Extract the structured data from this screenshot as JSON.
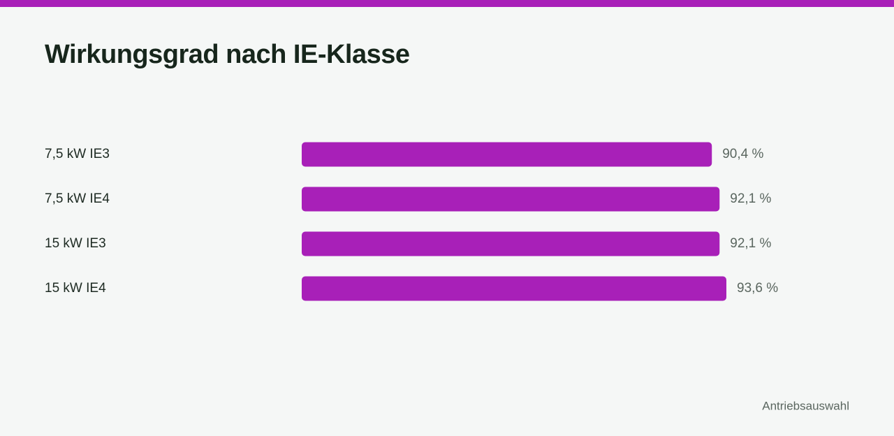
{
  "chart_data": {
    "type": "bar",
    "orientation": "horizontal",
    "title": "Wirkungsgrad nach IE-Klasse",
    "categories": [
      "7,5 kW IE3",
      "7,5 kW IE4",
      "15 kW IE3",
      "15 kW IE4"
    ],
    "values": [
      90.4,
      92.1,
      92.1,
      93.6
    ],
    "value_labels": [
      "90,4 %",
      "92,1 %",
      "92,1 %",
      "93,6 %"
    ],
    "color": "#a820b8",
    "footer": "Antriebsauswahl"
  }
}
